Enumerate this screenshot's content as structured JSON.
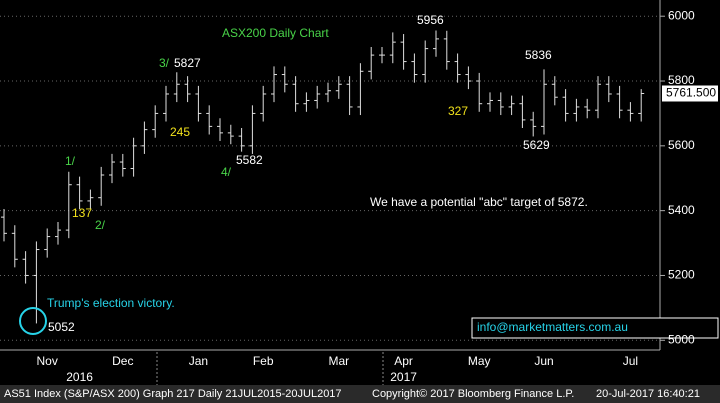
{
  "chart_data": {
    "type": "ohlc",
    "title": "ASX200 Daily Chart",
    "color": "#e0e0e0",
    "ylim": [
      4970,
      6050
    ],
    "yticks": [
      5000,
      5200,
      5400,
      5600,
      5800,
      6000
    ],
    "grid": true,
    "categories": [
      null,
      null,
      null,
      null,
      "Nov",
      null,
      null,
      null,
      null,
      null,
      null,
      "Dec",
      null,
      null,
      null,
      null,
      null,
      null,
      "Jan",
      null,
      null,
      null,
      null,
      null,
      "Feb",
      null,
      null,
      null,
      null,
      null,
      null,
      "Mar",
      null,
      null,
      null,
      null,
      null,
      "Apr",
      null,
      null,
      null,
      null,
      null,
      null,
      "May",
      null,
      null,
      null,
      null,
      null,
      "Jun",
      null,
      null,
      null,
      null,
      null,
      null,
      null,
      "Jul",
      null
    ],
    "years": [
      null,
      null,
      null,
      null,
      null,
      null,
      null,
      "2016",
      null,
      null,
      null,
      null,
      null,
      null,
      null,
      null,
      null,
      null,
      null,
      null,
      null,
      null,
      null,
      null,
      null,
      null,
      null,
      null,
      null,
      null,
      null,
      null,
      null,
      null,
      null,
      null,
      null,
      "2017",
      null,
      null,
      null,
      null,
      null,
      null,
      null,
      null,
      null,
      null,
      null,
      null,
      null,
      null,
      null,
      null,
      null,
      null,
      null,
      null,
      null,
      null
    ],
    "open": [
      5380,
      5330,
      5250,
      5200,
      5280,
      5320,
      5340,
      5480,
      5430,
      5440,
      5510,
      5550,
      5530,
      5600,
      5650,
      5700,
      5760,
      5790,
      5760,
      5700,
      5660,
      5640,
      5630,
      5600,
      5700,
      5760,
      5820,
      5790,
      5730,
      5740,
      5760,
      5770,
      5790,
      5720,
      5830,
      5880,
      5880,
      5920,
      5860,
      5820,
      5900,
      5930,
      5860,
      5820,
      5800,
      5730,
      5740,
      5720,
      5730,
      5680,
      5660,
      5790,
      5750,
      5700,
      5720,
      5710,
      5790,
      5760,
      5710,
      5700
    ],
    "high": [
      5405,
      5355,
      5275,
      5305,
      5345,
      5365,
      5520,
      5505,
      5465,
      5535,
      5575,
      5575,
      5625,
      5675,
      5725,
      5785,
      5827,
      5815,
      5785,
      5725,
      5685,
      5665,
      5655,
      5725,
      5785,
      5845,
      5845,
      5815,
      5765,
      5785,
      5795,
      5815,
      5815,
      5855,
      5905,
      5905,
      5950,
      5945,
      5885,
      5925,
      5956,
      5955,
      5885,
      5845,
      5825,
      5765,
      5765,
      5755,
      5755,
      5705,
      5836,
      5815,
      5775,
      5745,
      5745,
      5815,
      5815,
      5785,
      5735,
      5775
    ],
    "low": [
      5305,
      5225,
      5175,
      5052,
      5255,
      5295,
      5315,
      5405,
      5405,
      5415,
      5485,
      5505,
      5505,
      5575,
      5625,
      5675,
      5735,
      5735,
      5675,
      5635,
      5615,
      5605,
      5582,
      5575,
      5675,
      5735,
      5765,
      5705,
      5705,
      5715,
      5735,
      5745,
      5695,
      5695,
      5805,
      5855,
      5855,
      5835,
      5795,
      5795,
      5875,
      5835,
      5795,
      5775,
      5705,
      5705,
      5695,
      5695,
      5655,
      5629,
      5635,
      5725,
      5675,
      5675,
      5685,
      5685,
      5735,
      5685,
      5675,
      5675
    ],
    "close": [
      5330,
      5250,
      5200,
      5280,
      5320,
      5340,
      5480,
      5430,
      5440,
      5510,
      5550,
      5530,
      5600,
      5650,
      5700,
      5760,
      5790,
      5760,
      5700,
      5660,
      5640,
      5630,
      5600,
      5700,
      5760,
      5820,
      5790,
      5730,
      5740,
      5760,
      5770,
      5790,
      5720,
      5830,
      5880,
      5880,
      5920,
      5860,
      5820,
      5900,
      5930,
      5860,
      5820,
      5800,
      5730,
      5740,
      5720,
      5730,
      5680,
      5660,
      5790,
      5750,
      5700,
      5720,
      5710,
      5790,
      5760,
      5710,
      5700,
      5761.5
    ],
    "last_label": "5761.500",
    "annotations": [
      "3/",
      "5827",
      "245",
      "1/",
      "137",
      "2/",
      "4/",
      "5582",
      "5956",
      "5836",
      "327",
      "5629",
      "We have a potential \"abc\" target of 5872.",
      "Trump's election victory.",
      "5052",
      "info@marketmatters.com.au"
    ],
    "footer": [
      "AS51 Index (S&P/ASX 200) Graph 217  Daily 21JUL2015-20JUL2017",
      "Copyright© 2017 Bloomberg Finance L.P.",
      "20-Jul-2017 16:40:21"
    ]
  }
}
